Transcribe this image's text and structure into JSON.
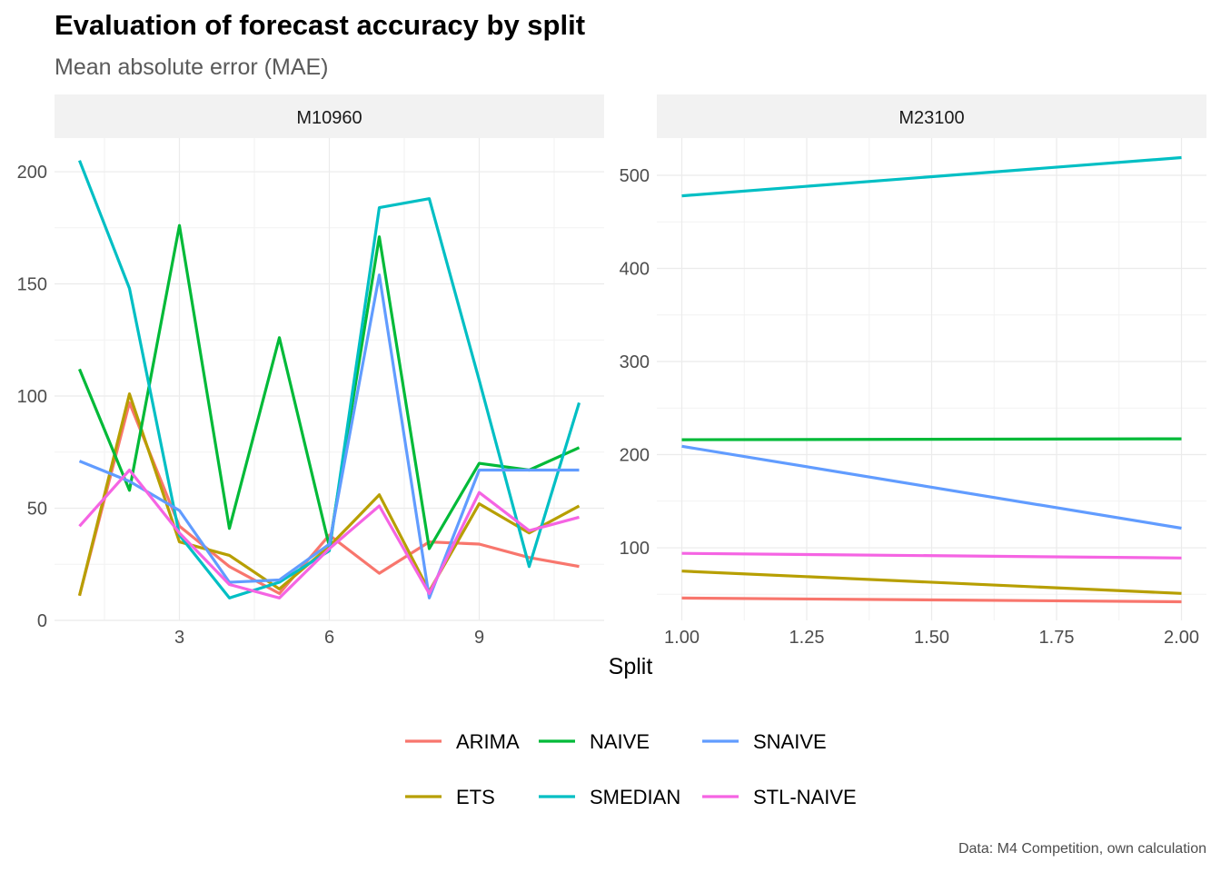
{
  "title": "Evaluation of forecast accuracy by split",
  "subtitle": "Mean absolute error (MAE)",
  "caption": "Data: M4 Competition, own calculation",
  "chart_data": {
    "type": "line",
    "xlabel": "Split",
    "ylabel": "",
    "legend_position": "bottom",
    "grid": true,
    "series_colors": {
      "ARIMA": "#F8766D",
      "ETS": "#B79F00",
      "NAIVE": "#00BA38",
      "SMEDIAN": "#00BFC4",
      "SNAIVE": "#619CFF",
      "STL-NAIVE": "#F564E3"
    },
    "legend": [
      "ARIMA",
      "NAIVE",
      "SNAIVE",
      "ETS",
      "SMEDIAN",
      "STL-NAIVE"
    ],
    "panels": [
      {
        "name": "M10960",
        "xlim": [
          0.5,
          11.5
        ],
        "ylim": [
          0,
          215
        ],
        "xticks": [
          3,
          6,
          9
        ],
        "yticks": [
          0,
          50,
          100,
          150,
          200
        ],
        "x": [
          1,
          2,
          3,
          4,
          5,
          6,
          7,
          8,
          9,
          10,
          11
        ],
        "series": [
          {
            "name": "ARIMA",
            "values": [
              11,
              97,
              42,
              24,
              12,
              38,
              21,
              35,
              34,
              28,
              24
            ]
          },
          {
            "name": "ETS",
            "values": [
              11,
              101,
              35,
              29,
              14,
              33,
              56,
              13,
              52,
              39,
              51
            ]
          },
          {
            "name": "NAIVE",
            "values": [
              112,
              58,
              176,
              41,
              126,
              33,
              171,
              32,
              70,
              67,
              77
            ]
          },
          {
            "name": "SMEDIAN",
            "values": [
              205,
              148,
              38,
              10,
              17,
              31,
              184,
              188,
              107,
              24,
              97
            ]
          },
          {
            "name": "SNAIVE",
            "values": [
              71,
              62,
              49,
              17,
              18,
              34,
              154,
              10,
              67,
              67,
              67
            ]
          },
          {
            "name": "STL-NAIVE",
            "values": [
              42,
              67,
              39,
              16,
              10,
              32,
              51,
              12,
              57,
              40,
              46
            ]
          }
        ]
      },
      {
        "name": "M23100",
        "xlim": [
          0.95,
          2.05
        ],
        "ylim": [
          22,
          540
        ],
        "xticks": [
          1.0,
          1.25,
          1.5,
          1.75,
          2.0
        ],
        "xtick_labels": [
          "1.00",
          "1.25",
          "1.50",
          "1.75",
          "2.00"
        ],
        "yticks": [
          100,
          200,
          300,
          400,
          500
        ],
        "x": [
          1,
          2
        ],
        "series": [
          {
            "name": "ARIMA",
            "values": [
              46,
              42
            ]
          },
          {
            "name": "ETS",
            "values": [
              75,
              51
            ]
          },
          {
            "name": "NAIVE",
            "values": [
              216,
              217
            ]
          },
          {
            "name": "SMEDIAN",
            "values": [
              478,
              519
            ]
          },
          {
            "name": "SNAIVE",
            "values": [
              209,
              121
            ]
          },
          {
            "name": "STL-NAIVE",
            "values": [
              94,
              89
            ]
          }
        ]
      }
    ]
  }
}
